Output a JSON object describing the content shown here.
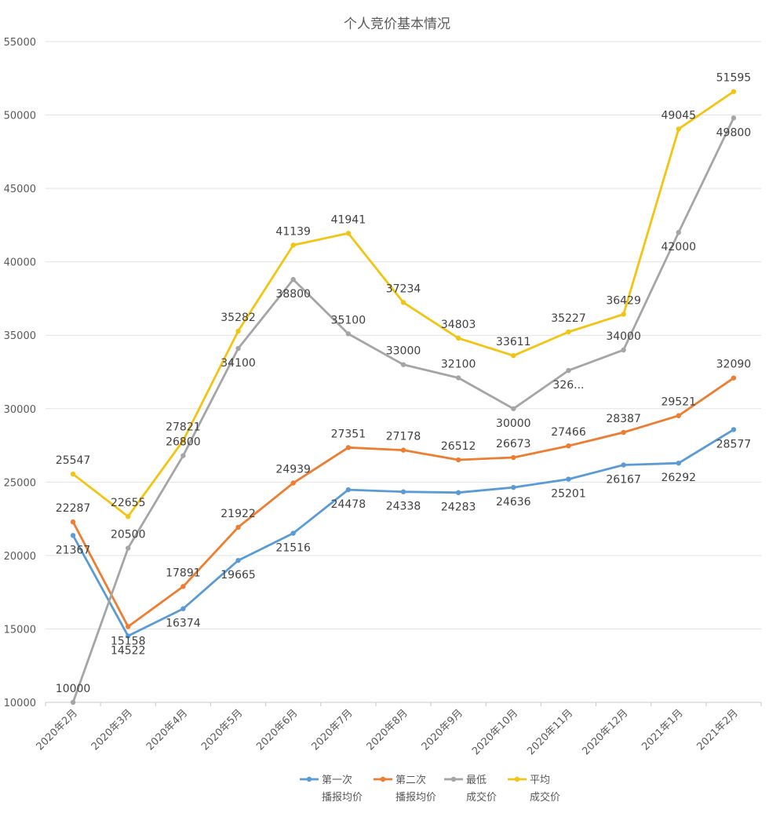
{
  "chart_data": {
    "type": "line",
    "title": "个人竞价基本情况",
    "xlabel": "",
    "ylabel": "",
    "ylim": [
      10000,
      55000
    ],
    "ytick_step": 5000,
    "grid": true,
    "legend_position": "bottom",
    "categories": [
      "2020年2月",
      "2020年3月",
      "2020年4月",
      "2020年5月",
      "2020年6月",
      "2020年7月",
      "2020年8月",
      "2020年9月",
      "2020年10月",
      "2020年11月",
      "2020年12月",
      "2021年1月",
      "2021年2月"
    ],
    "series": [
      {
        "name": "第一次播报均价",
        "legend_lines": [
          "第一次",
          "播报均价"
        ],
        "color": "#5b9bd5",
        "values": [
          21367,
          14522,
          16374,
          19665,
          21516,
          24478,
          24338,
          24283,
          24636,
          25201,
          26167,
          26292,
          28577
        ],
        "labels": [
          "21367",
          "14522",
          "16374",
          "19665",
          "21516",
          "24478",
          "24338",
          "24283",
          "24636",
          "25201",
          "26167",
          "26292",
          "28577"
        ]
      },
      {
        "name": "第二次播报均价",
        "legend_lines": [
          "第二次",
          "播报均价"
        ],
        "color": "#ed7d31",
        "values": [
          22287,
          15158,
          17891,
          21922,
          24939,
          27351,
          27178,
          26512,
          26673,
          27466,
          28387,
          29521,
          32090
        ],
        "labels": [
          "22287",
          "15158",
          "17891",
          "21922",
          "24939",
          "27351",
          "27178",
          "26512",
          "26673",
          "27466",
          "28387",
          "29521",
          "32090"
        ]
      },
      {
        "name": "最低成交价",
        "legend_lines": [
          "最低",
          "成交价"
        ],
        "color": "#a5a5a5",
        "values": [
          10000,
          20500,
          26800,
          34100,
          38800,
          35100,
          33000,
          32100,
          30000,
          32600,
          34000,
          42000,
          49800
        ],
        "labels": [
          "10000",
          "20500",
          "26800",
          "34100",
          "38800",
          "35100",
          "33000",
          "32100",
          "30000",
          "326...",
          "34000",
          "42000",
          "49800"
        ]
      },
      {
        "name": "平均成交价",
        "legend_lines": [
          "平均",
          "成交价"
        ],
        "color": "#f2c413",
        "values": [
          25547,
          22655,
          27821,
          35282,
          41139,
          41941,
          37234,
          34803,
          33611,
          35227,
          36429,
          49045,
          51595
        ],
        "labels": [
          "25547",
          "22655",
          "27821",
          "35282",
          "41139",
          "41941",
          "37234",
          "34803",
          "33611",
          "35227",
          "36429",
          "49045",
          "51595"
        ]
      }
    ]
  }
}
